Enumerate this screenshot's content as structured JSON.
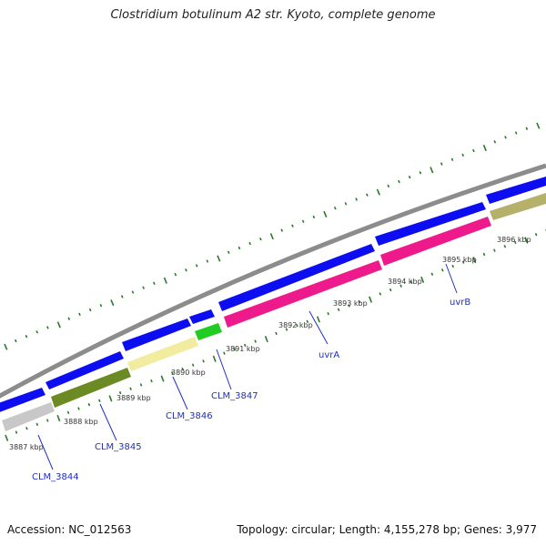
{
  "title": "Clostridium botulinum A2 str. Kyoto, complete genome",
  "accession": "Accession: NC_012563",
  "topology": "Topology: circular; Length: 4,155,278 bp; Genes: 3,977",
  "colors": {
    "backbone": "#8c8c8c",
    "forward_gene": "#0d0df2",
    "tick": "#2a7a2a",
    "label": "#1f2fbf"
  },
  "tick_labels": [
    "3887 kbp",
    "3888 kbp",
    "3889 kbp",
    "3890 kbp",
    "3891 kbp",
    "3892 kbp",
    "3893 kbp",
    "3894 kbp",
    "3895 kbp",
    "3896 kbp"
  ],
  "gene_labels": [
    "CLM_3844",
    "CLM_3845",
    "CLM_3846",
    "CLM_3847",
    "uvrA",
    "uvrB"
  ],
  "features": {
    "reverse": [
      {
        "color": "#c8c8c8",
        "name": "CLM_3844"
      },
      {
        "color": "#6b8a23",
        "name": "CLM_3845"
      },
      {
        "color": "#f2eca0",
        "name": "CLM_3846"
      },
      {
        "color": "#22cc22",
        "name": "CLM_3847"
      },
      {
        "color": "#ee1a8c",
        "name": "uvrA"
      },
      {
        "color": "#ee1a8c",
        "name": "uvrB"
      },
      {
        "color": "#b5b06a",
        "name": ""
      }
    ],
    "forward_count": 8
  }
}
